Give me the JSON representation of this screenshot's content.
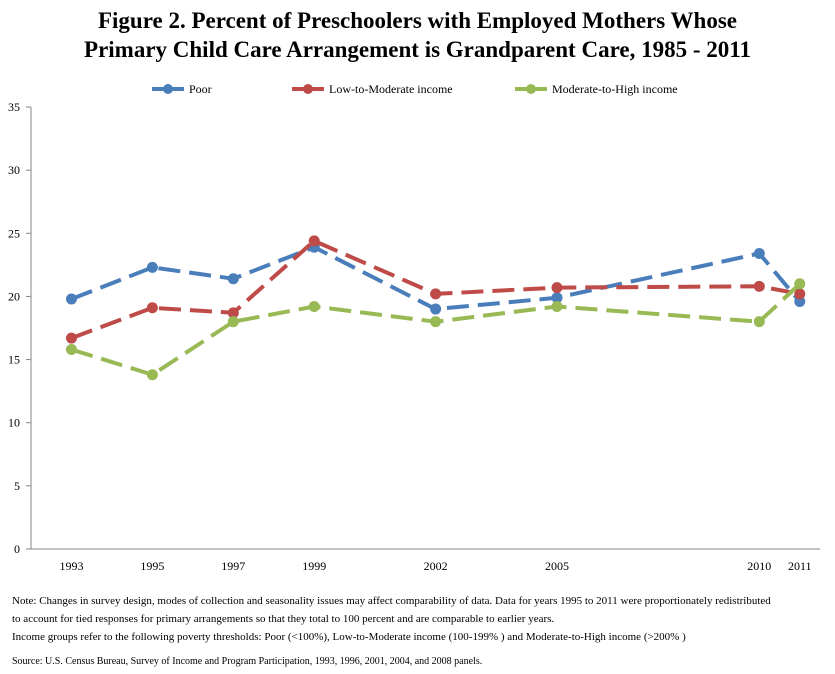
{
  "title_line1": "Figure 2. Percent of Preschoolers with Employed Mothers Whose",
  "title_line2": "Primary Child Care Arrangement is Grandparent Care, 1985 - 2011",
  "note_line1": "Note: Changes in survey design, modes of collection and seasonality issues may affect comparability of data. Data for years 1995 to 2011 were proportionately redistributed",
  "note_line2": "to account for tied responses for primary arrangements so that they total to 100 percent and are comparable to earlier years.",
  "note_line3": "Income groups refer to the following poverty thresholds: Poor (<100%), Low-to-Moderate income (100-199% ) and Moderate-to-High income (>200% )",
  "source": "Source: U.S. Census Bureau, Survey of Income and Program Participation, 1993, 1996, 2001, 2004, and 2008 panels.",
  "chart_data": {
    "type": "line",
    "x": [
      1993,
      1995,
      1997,
      1999,
      2002,
      2005,
      2010,
      2011
    ],
    "ylim": [
      0,
      35
    ],
    "yticks": [
      0,
      5,
      10,
      15,
      20,
      25,
      30,
      35
    ],
    "grid": false,
    "legend": "top",
    "series": [
      {
        "name": "Poor",
        "color": "#4a7ebb",
        "values": [
          19.8,
          22.3,
          21.4,
          23.9,
          19.0,
          19.9,
          23.4,
          19.6
        ]
      },
      {
        "name": "Low-to-Moderate income",
        "color": "#be4b48",
        "values": [
          16.7,
          19.1,
          18.7,
          24.4,
          20.2,
          20.7,
          20.8,
          20.2
        ]
      },
      {
        "name": "Moderate-to-High income",
        "color": "#98b954",
        "values": [
          15.8,
          13.8,
          18.0,
          19.2,
          18.0,
          19.2,
          18.0,
          21.0
        ]
      }
    ]
  }
}
